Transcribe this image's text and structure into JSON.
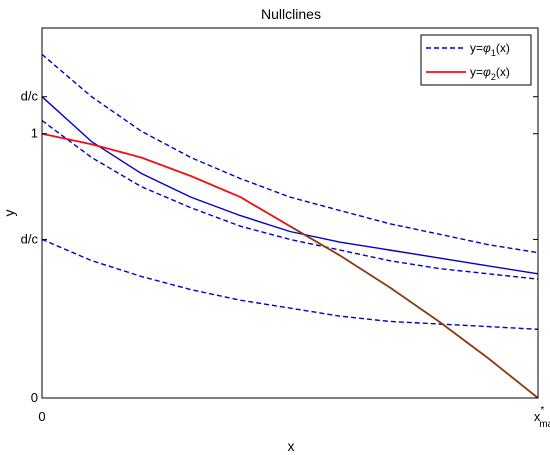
{
  "chart_data": {
    "type": "line",
    "title": "Nullclines",
    "xlabel": "x",
    "ylabel": "y",
    "xlim": [
      0,
      1
    ],
    "ylim": [
      0,
      1.4
    ],
    "grid": false,
    "legend_position": "top-right",
    "colors": {
      "phi1": "#0000cc",
      "phi2": "#ee1111",
      "overlap": "#8b3a0f"
    },
    "y_ticks": [
      {
        "value": 0,
        "label": "0"
      },
      {
        "value": 0.6,
        "label": "d/c"
      },
      {
        "value": 1.0,
        "label": "1"
      },
      {
        "value": 1.14,
        "label": "d/c"
      }
    ],
    "x_ticks": [
      {
        "value": 0,
        "label": "0"
      },
      {
        "value": 1,
        "label": "x",
        "superscript": "*",
        "subscript": "max"
      }
    ],
    "legend": [
      {
        "key": "phi1",
        "prefix": "y=",
        "symbol": "φ",
        "sub": "1",
        "suffix": "(x)",
        "style": "dashed"
      },
      {
        "key": "phi2",
        "prefix": "y=",
        "symbol": "φ",
        "sub": "2",
        "suffix": "(x)",
        "style": "solid"
      }
    ],
    "series": [
      {
        "key": "phi1_top",
        "style": "dashed",
        "color": "phi1",
        "x": [
          0,
          0.1,
          0.2,
          0.3,
          0.4,
          0.5,
          0.6,
          0.7,
          0.8,
          0.9,
          1.0
        ],
        "y": [
          1.3,
          1.14,
          1.01,
          0.91,
          0.83,
          0.76,
          0.71,
          0.66,
          0.62,
          0.58,
          0.55
        ]
      },
      {
        "key": "phi1_mid",
        "style": "solid",
        "color": "phi1",
        "x": [
          0,
          0.1,
          0.2,
          0.3,
          0.4,
          0.5,
          0.6,
          0.7,
          0.8,
          0.9,
          1.0
        ],
        "y": [
          1.14,
          0.97,
          0.85,
          0.76,
          0.69,
          0.63,
          0.59,
          0.56,
          0.53,
          0.5,
          0.47
        ]
      },
      {
        "key": "phi1_lower",
        "style": "dashed",
        "color": "phi1",
        "x": [
          0,
          0.1,
          0.2,
          0.3,
          0.4,
          0.5,
          0.6,
          0.7,
          0.8,
          0.9,
          1.0
        ],
        "y": [
          1.05,
          0.91,
          0.8,
          0.72,
          0.65,
          0.6,
          0.56,
          0.52,
          0.49,
          0.47,
          0.45
        ]
      },
      {
        "key": "phi1_bottom",
        "style": "dashed",
        "color": "phi1",
        "x": [
          0,
          0.1,
          0.2,
          0.3,
          0.4,
          0.5,
          0.6,
          0.7,
          0.8,
          0.9,
          1.0
        ],
        "y": [
          0.6,
          0.52,
          0.46,
          0.41,
          0.37,
          0.34,
          0.31,
          0.29,
          0.28,
          0.27,
          0.26
        ]
      },
      {
        "key": "phi2_red",
        "style": "solid",
        "color": "phi2",
        "x": [
          0,
          0.1,
          0.2,
          0.3,
          0.4,
          0.5
        ],
        "y": [
          1.0,
          0.96,
          0.91,
          0.84,
          0.76,
          0.65
        ]
      },
      {
        "key": "phi2_overlap",
        "style": "solid",
        "color": "overlap",
        "x": [
          0.5,
          0.6,
          0.7,
          0.8,
          0.9,
          1.0
        ],
        "y": [
          0.65,
          0.54,
          0.42,
          0.29,
          0.15,
          0.0
        ]
      }
    ]
  }
}
